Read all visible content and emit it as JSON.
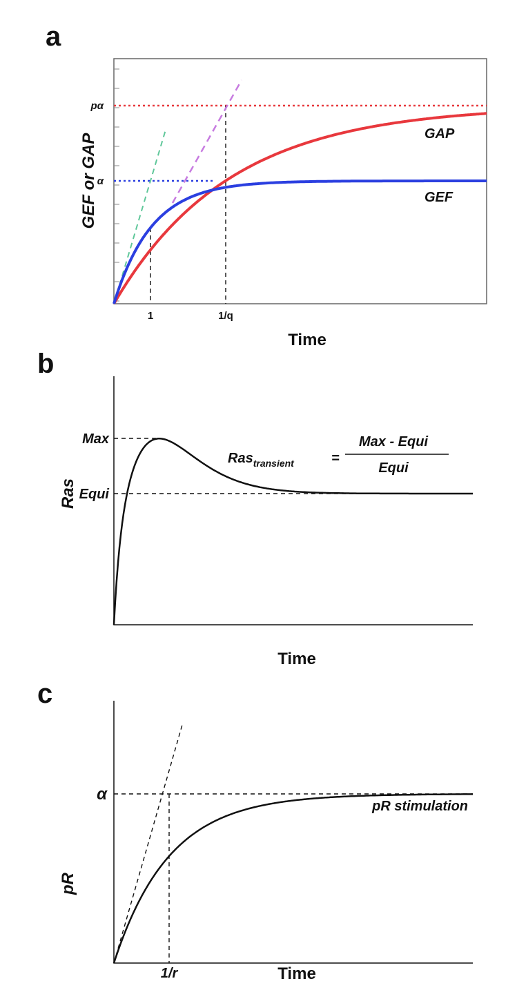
{
  "panels": [
    {
      "label": "a",
      "y_label": "GEF or GAP",
      "x_label": "Time",
      "x_ticks": [
        "1",
        "1/q"
      ],
      "y_ticks": [
        "pα",
        "α"
      ],
      "curves": [
        "GAP",
        "GEF"
      ]
    },
    {
      "label": "b",
      "y_label": "Ras",
      "x_label": "Time",
      "y_ticks": [
        "Max",
        "Equi"
      ],
      "formula": {
        "lhs": "Ras",
        "subscript": "transient",
        "equals": "=",
        "numerator": "Max - Equi",
        "denominator": "Equi"
      }
    },
    {
      "label": "c",
      "y_label": "pR",
      "x_label": "Time",
      "x_ticks": [
        "1/r"
      ],
      "y_ticks": [
        "α"
      ],
      "curve": "pR stimulation"
    }
  ]
}
